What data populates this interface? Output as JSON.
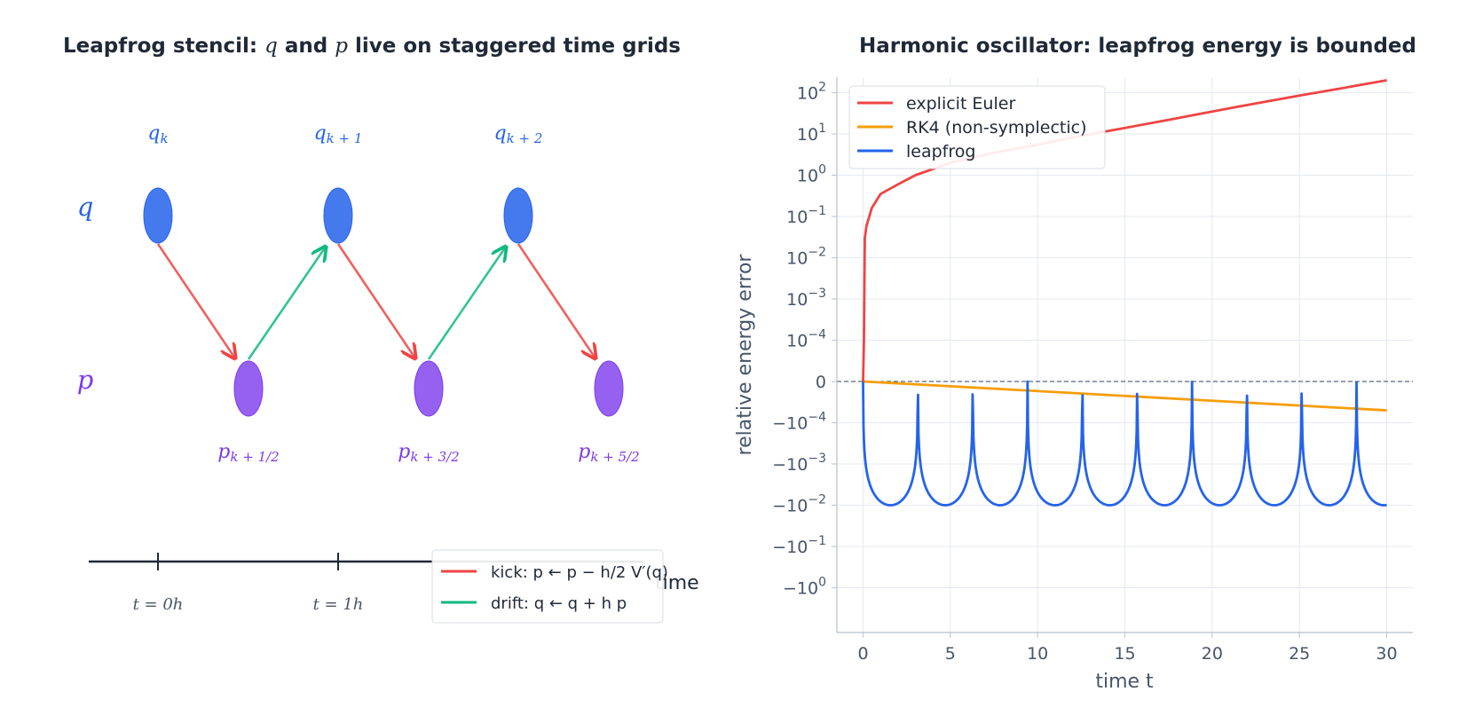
{
  "colors": {
    "q": "#2563eb",
    "p": "#7c3aed",
    "kick": "#ef4444",
    "drift": "#10b981",
    "euler": "#ef4444",
    "rk4": "#f59e0b",
    "leapfrog": "#2563eb",
    "axis": "#1f2937"
  },
  "left": {
    "title_prefix": "Leapfrog stencil: ",
    "title_q": "q",
    "title_mid": " and ",
    "title_p": "p",
    "title_suffix": " live on staggered time grids",
    "row_q": "q",
    "row_p": "p",
    "q_labels": [
      "q",
      "q",
      "q"
    ],
    "q_subs": [
      "k",
      "k + 1",
      "k + 2"
    ],
    "p_labels": [
      "p",
      "p",
      "p"
    ],
    "p_subs": [
      "k + 1/2",
      "k + 3/2",
      "k + 5/2"
    ],
    "time_ticks": [
      "t = 0h",
      "t = 1h"
    ],
    "time_label": "time",
    "legend": {
      "kick": "kick: p ← p − h/2 V′(q)",
      "drift": "drift: q ← q + h p"
    }
  },
  "chart_data": {
    "type": "line",
    "title": "Harmonic oscillator: leapfrog energy is bounded",
    "xlabel": "time t",
    "ylabel": "relative energy error",
    "xlim": [
      -1.5,
      31.5
    ],
    "xticks": [
      "0",
      "5",
      "10",
      "15",
      "20",
      "25",
      "30"
    ],
    "yscale": "symlog",
    "ytick_labels": [
      "10^2",
      "10^1",
      "10^0",
      "10^−1",
      "10^−2",
      "10^−3",
      "10^−4",
      "0",
      "−10^−4",
      "−10^−3",
      "−10^−2",
      "−10^−1",
      "−10^0"
    ],
    "grid": true,
    "legend_position": "top-left",
    "series": [
      {
        "name": "explicit Euler",
        "x": [
          0,
          0.05,
          0.1,
          0.2,
          0.5,
          1,
          2,
          3,
          5,
          7.5,
          10,
          12.5,
          15,
          17.5,
          20,
          22.5,
          25,
          27.5,
          30
        ],
        "y": [
          0,
          0.0001,
          0.03,
          0.06,
          0.16,
          0.35,
          0.6,
          1.0,
          2.0,
          3.5,
          5.5,
          9,
          14,
          22,
          35,
          55,
          85,
          130,
          200
        ]
      },
      {
        "name": "RK4 (non-symplectic)",
        "x": [
          0,
          30
        ],
        "y": [
          0,
          -7e-05
        ]
      },
      {
        "name": "leapfrog",
        "description": "bounded oscillation between 0 and about −0.01, touching 0 near multiples of π",
        "peaks": [
          0,
          3.14,
          6.28,
          9.42,
          12.57,
          15.71,
          18.85,
          21.99,
          25.13,
          28.27
        ],
        "minimum": -0.01
      }
    ]
  }
}
